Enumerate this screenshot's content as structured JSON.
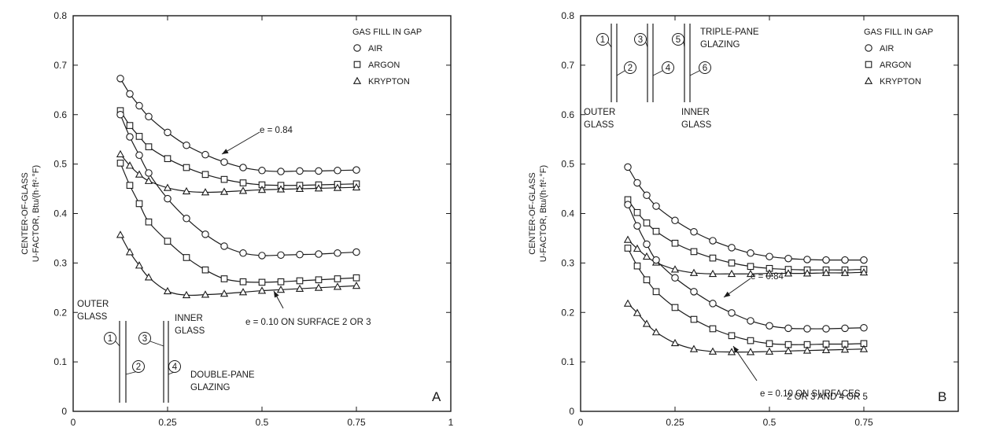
{
  "chart_data": [
    {
      "type": "line",
      "panel_label": "A",
      "ylabel_line1": "CENTER-OF-GLASS",
      "ylabel_line2": "U-FACTOR, Btu/(h·ft²·°F)",
      "xlim": [
        0,
        1
      ],
      "ylim": [
        0,
        0.8
      ],
      "xticks": [
        0,
        0.25,
        0.5,
        0.75,
        1
      ],
      "xtick_labels": [
        "0",
        "0.25",
        "0.5",
        "0.75",
        "1"
      ],
      "yticks": [
        0,
        0.1,
        0.2,
        0.3,
        0.4,
        0.5,
        0.6,
        0.7,
        0.8
      ],
      "ytick_labels": [
        "0",
        "0.1",
        "0.2",
        "0.3",
        "0.4",
        "0.5",
        "0.6",
        "0.7",
        "0.8"
      ],
      "legend": {
        "title": "GAS FILL IN GAP",
        "placement": "top-right",
        "entries": [
          {
            "marker": "circle",
            "label": "AIR"
          },
          {
            "marker": "square",
            "label": "ARGON"
          },
          {
            "marker": "triangle",
            "label": "KRYPTON"
          }
        ]
      },
      "annotations": {
        "high_e": "e = 0.84",
        "low_e_line1": "e = 0.10 ON SURFACE 2 OR 3",
        "low_e_line2": "",
        "outer_line1": "OUTER",
        "outer_line2": "GLASS",
        "inner_line1": "INNER",
        "inner_line2": "GLASS",
        "glazing_line1": "DOUBLE-PANE",
        "glazing_line2": "GLAZING",
        "surfaces": [
          "1",
          "2",
          "3",
          "4"
        ]
      },
      "x": [
        0.125,
        0.15,
        0.175,
        0.2,
        0.25,
        0.3,
        0.35,
        0.4,
        0.45,
        0.5,
        0.55,
        0.6,
        0.65,
        0.7,
        0.75
      ],
      "series": [
        {
          "gas": "AIR",
          "emittance": "0.84",
          "marker": "circle",
          "values": [
            0.673,
            0.642,
            0.618,
            0.596,
            0.564,
            0.538,
            0.519,
            0.504,
            0.493,
            0.487,
            0.485,
            0.486,
            0.486,
            0.487,
            0.488
          ]
        },
        {
          "gas": "ARGON",
          "emittance": "0.84",
          "marker": "square",
          "values": [
            0.608,
            0.578,
            0.556,
            0.535,
            0.511,
            0.493,
            0.479,
            0.469,
            0.462,
            0.458,
            0.457,
            0.457,
            0.458,
            0.459,
            0.46
          ]
        },
        {
          "gas": "KRYPTON",
          "emittance": "0.84",
          "marker": "triangle",
          "values": [
            0.52,
            0.497,
            0.479,
            0.466,
            0.452,
            0.445,
            0.443,
            0.444,
            0.446,
            0.448,
            0.449,
            0.45,
            0.451,
            0.452,
            0.453
          ]
        },
        {
          "gas": "AIR",
          "emittance": "0.10",
          "marker": "circle",
          "values": [
            0.6,
            0.555,
            0.518,
            0.482,
            0.43,
            0.39,
            0.358,
            0.334,
            0.32,
            0.315,
            0.316,
            0.317,
            0.318,
            0.32,
            0.322
          ]
        },
        {
          "gas": "ARGON",
          "emittance": "0.10",
          "marker": "square",
          "values": [
            0.502,
            0.457,
            0.42,
            0.383,
            0.344,
            0.311,
            0.286,
            0.268,
            0.262,
            0.261,
            0.262,
            0.264,
            0.266,
            0.268,
            0.27
          ]
        },
        {
          "gas": "KRYPTON",
          "emittance": "0.10",
          "marker": "triangle",
          "values": [
            0.357,
            0.322,
            0.295,
            0.271,
            0.243,
            0.235,
            0.236,
            0.238,
            0.241,
            0.244,
            0.246,
            0.248,
            0.25,
            0.252,
            0.254
          ]
        }
      ]
    },
    {
      "type": "line",
      "panel_label": "B",
      "ylabel_line1": "CENTER-OF-GLASS",
      "ylabel_line2": "U-FACTOR, Btu/(h·ft²·°F)",
      "xlim": [
        0,
        1
      ],
      "ylim": [
        0,
        0.8
      ],
      "xticks": [
        0,
        0.25,
        0.5,
        0.75
      ],
      "xtick_labels": [
        "0",
        "0.25",
        "0.5",
        "0.75"
      ],
      "yticks": [
        0,
        0.1,
        0.2,
        0.3,
        0.4,
        0.5,
        0.6,
        0.7,
        0.8
      ],
      "ytick_labels": [
        "0",
        "0.1",
        "0.2",
        "0.3",
        "0.4",
        "0.5",
        "0.6",
        "0.7",
        "0.8"
      ],
      "legend": {
        "title": "GAS FILL IN GAP",
        "placement": "top-right",
        "entries": [
          {
            "marker": "circle",
            "label": "AIR"
          },
          {
            "marker": "square",
            "label": "ARGON"
          },
          {
            "marker": "triangle",
            "label": "KRYPTON"
          }
        ]
      },
      "annotations": {
        "high_e": "e = 0.84",
        "low_e_line1": "e = 0.10 ON SURFACES",
        "low_e_line2": "2 OR 3 AND 4 OR 5",
        "outer_line1": "OUTER",
        "outer_line2": "GLASS",
        "inner_line1": "INNER",
        "inner_line2": "GLASS",
        "glazing_line1": "TRIPLE-PANE",
        "glazing_line2": "GLAZING",
        "surfaces": [
          "1",
          "2",
          "3",
          "4",
          "5",
          "6"
        ]
      },
      "x": [
        0.125,
        0.15,
        0.175,
        0.2,
        0.25,
        0.3,
        0.35,
        0.4,
        0.45,
        0.5,
        0.55,
        0.6,
        0.65,
        0.7,
        0.75
      ],
      "series": [
        {
          "gas": "AIR",
          "emittance": "0.84",
          "marker": "circle",
          "values": [
            0.494,
            0.462,
            0.437,
            0.415,
            0.386,
            0.363,
            0.345,
            0.331,
            0.32,
            0.313,
            0.309,
            0.307,
            0.306,
            0.306,
            0.306
          ]
        },
        {
          "gas": "ARGON",
          "emittance": "0.84",
          "marker": "square",
          "values": [
            0.428,
            0.402,
            0.381,
            0.364,
            0.34,
            0.323,
            0.31,
            0.3,
            0.293,
            0.289,
            0.287,
            0.286,
            0.286,
            0.286,
            0.287
          ]
        },
        {
          "gas": "KRYPTON",
          "emittance": "0.84",
          "marker": "triangle",
          "values": [
            0.347,
            0.329,
            0.313,
            0.301,
            0.287,
            0.28,
            0.278,
            0.278,
            0.278,
            0.279,
            0.279,
            0.279,
            0.28,
            0.28,
            0.281
          ]
        },
        {
          "gas": "AIR",
          "emittance": "0.10",
          "marker": "circle",
          "values": [
            0.418,
            0.375,
            0.338,
            0.306,
            0.27,
            0.242,
            0.218,
            0.199,
            0.183,
            0.173,
            0.168,
            0.167,
            0.167,
            0.168,
            0.169
          ]
        },
        {
          "gas": "ARGON",
          "emittance": "0.10",
          "marker": "square",
          "values": [
            0.33,
            0.294,
            0.266,
            0.242,
            0.21,
            0.186,
            0.167,
            0.153,
            0.143,
            0.137,
            0.135,
            0.135,
            0.136,
            0.136,
            0.137
          ]
        },
        {
          "gas": "KRYPTON",
          "emittance": "0.10",
          "marker": "triangle",
          "values": [
            0.218,
            0.199,
            0.177,
            0.16,
            0.138,
            0.126,
            0.121,
            0.12,
            0.12,
            0.121,
            0.122,
            0.123,
            0.124,
            0.125,
            0.126
          ]
        }
      ]
    }
  ]
}
